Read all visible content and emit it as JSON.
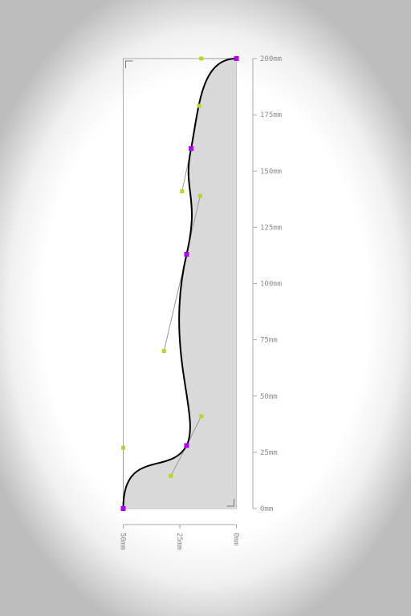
{
  "units": "mm",
  "colors": {
    "fill": "#d9d9d9",
    "curve": "#000000",
    "anchor": "#b200ff",
    "handle": "#bcd42a",
    "handle_line": "#999999",
    "frame": "#aaaaaa",
    "axis": "#aaaaaa",
    "label": "#8a8a8a"
  },
  "vertical_axis": {
    "range": [
      0,
      200
    ],
    "ticks": [
      {
        "value": 0,
        "label": "0mm"
      },
      {
        "value": 25,
        "label": "25mm"
      },
      {
        "value": 50,
        "label": "50mm"
      },
      {
        "value": 75,
        "label": "75mm"
      },
      {
        "value": 100,
        "label": "100mm"
      },
      {
        "value": 125,
        "label": "125mm"
      },
      {
        "value": 150,
        "label": "150mm"
      },
      {
        "value": 175,
        "label": "175mm"
      },
      {
        "value": 200,
        "label": "200mm"
      }
    ]
  },
  "horizontal_axis": {
    "range": [
      0,
      50
    ],
    "direction": "reversed",
    "ticks": [
      {
        "value": 50,
        "label": "50mm"
      },
      {
        "value": 25,
        "label": "25mm"
      },
      {
        "value": 0,
        "label": "0mm"
      }
    ]
  },
  "profile": {
    "anchors": [
      {
        "name": "anchor-1",
        "x": 50,
        "y": 0
      },
      {
        "name": "anchor-2",
        "x": 22,
        "y": 28
      },
      {
        "name": "anchor-3",
        "x": 22,
        "y": 113
      },
      {
        "name": "anchor-4",
        "x": 20,
        "y": 160
      },
      {
        "name": "anchor-5",
        "x": 0,
        "y": 200
      }
    ],
    "segments": [
      {
        "c1": {
          "x": 50,
          "y": 27
        },
        "c2": {
          "x": 29,
          "y": 14.5
        }
      },
      {
        "c1": {
          "x": 15.5,
          "y": 41
        },
        "c2": {
          "x": 32,
          "y": 70
        }
      },
      {
        "c1": {
          "x": 16,
          "y": 139
        },
        "c2": {
          "x": 24,
          "y": 141
        }
      },
      {
        "c1": {
          "x": 16.5,
          "y": 179
        },
        "c2": {
          "x": 15.5,
          "y": 200
        }
      }
    ]
  }
}
